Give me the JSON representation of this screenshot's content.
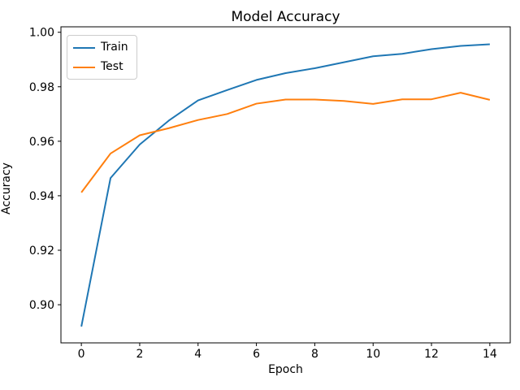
{
  "chart_data": {
    "type": "line",
    "title": "Model Accuracy",
    "xlabel": "Epoch",
    "ylabel": "Accuracy",
    "x": [
      0,
      1,
      2,
      3,
      4,
      5,
      6,
      7,
      8,
      9,
      10,
      11,
      12,
      13,
      14
    ],
    "series": [
      {
        "name": "Train",
        "color": "#1f77b4",
        "values": [
          0.892,
          0.9465,
          0.9588,
          0.9676,
          0.975,
          0.9788,
          0.9825,
          0.985,
          0.9868,
          0.989,
          0.9912,
          0.9921,
          0.9938,
          0.995,
          0.9956
        ]
      },
      {
        "name": "Test",
        "color": "#ff7f0e",
        "values": [
          0.9412,
          0.9555,
          0.9622,
          0.9648,
          0.9678,
          0.97,
          0.9738,
          0.9753,
          0.9753,
          0.9748,
          0.9737,
          0.9754,
          0.9754,
          0.9778,
          0.9752
        ]
      }
    ],
    "xlim": [
      -0.7,
      14.7
    ],
    "ylim": [
      0.886,
      1.002
    ],
    "xticks": {
      "values": [
        0,
        2,
        4,
        6,
        8,
        10,
        12,
        14
      ],
      "labels": [
        "0",
        "2",
        "4",
        "6",
        "8",
        "10",
        "12",
        "14"
      ]
    },
    "yticks": {
      "values": [
        0.9,
        0.92,
        0.94,
        0.96,
        0.98,
        1.0
      ],
      "labels": [
        "0.90",
        "0.92",
        "0.94",
        "0.96",
        "0.98",
        "1.00"
      ]
    },
    "legend": {
      "position": "upper left",
      "entries": [
        "Train",
        "Test"
      ]
    },
    "grid": false,
    "axis_color": "#000000"
  }
}
